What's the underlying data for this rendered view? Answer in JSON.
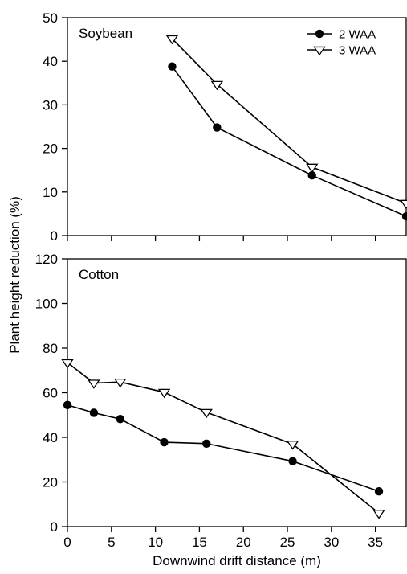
{
  "chart_data": [
    {
      "type": "line",
      "panel_label": "Soybean",
      "x_range": [
        0,
        38.5
      ],
      "ylim": [
        0,
        50
      ],
      "yticks": [
        0,
        10,
        20,
        30,
        40,
        50
      ],
      "series": [
        {
          "name": "2 WAA",
          "marker": "filled-circle",
          "x": [
            11.9,
            17.0,
            27.8,
            38.5
          ],
          "y": [
            38.8,
            24.8,
            13.8,
            4.4
          ]
        },
        {
          "name": "3 WAA",
          "marker": "open-down-triangle",
          "x": [
            11.9,
            17.0,
            27.8,
            38.5
          ],
          "y": [
            45.2,
            34.7,
            15.7,
            7.4
          ]
        }
      ],
      "legend": {
        "placement": "top-right",
        "entries": [
          "2 WAA",
          "3 WAA"
        ]
      }
    },
    {
      "type": "line",
      "panel_label": "Cotton",
      "x_range": [
        0,
        38.5
      ],
      "ylim": [
        0,
        120
      ],
      "yticks": [
        0,
        20,
        40,
        60,
        80,
        100,
        120
      ],
      "xticks": [
        0,
        5,
        10,
        15,
        20,
        25,
        30,
        35
      ],
      "series": [
        {
          "name": "2 WAA",
          "marker": "filled-circle",
          "x": [
            0,
            3.0,
            6.0,
            11.0,
            15.8,
            25.6,
            35.4
          ],
          "y": [
            54.5,
            51.0,
            48.2,
            37.8,
            37.2,
            29.3,
            15.8
          ]
        },
        {
          "name": "3 WAA",
          "marker": "open-down-triangle",
          "x": [
            0,
            3.0,
            6.0,
            11.0,
            15.8,
            25.6,
            35.4
          ],
          "y": [
            73.5,
            64.3,
            64.8,
            60.2,
            51.2,
            37.0,
            6.0
          ]
        }
      ]
    }
  ],
  "shared": {
    "ylabel": "Plant height reduction (%)",
    "xlabel": "Downwind drift distance (m)"
  }
}
